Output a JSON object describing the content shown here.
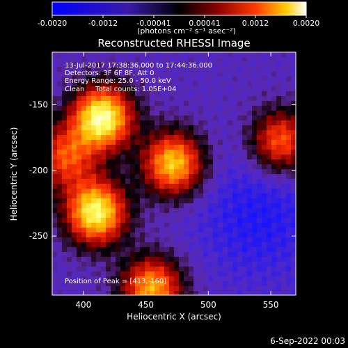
{
  "colorbar": {
    "ticks": [
      "-0.0020",
      "-0.0012",
      "-0.00041",
      "0.00041",
      "0.0012",
      "0.0020"
    ],
    "units": "(photons cm⁻² s⁻¹ asec⁻²)"
  },
  "chart_data": {
    "type": "heatmap",
    "title": "Reconstructed RHESSI Image",
    "xlabel": "Heliocentric X (arcsec)",
    "ylabel": "Heliocentric Y (arcsec)",
    "xlim": [
      375,
      570
    ],
    "ylim": [
      -295,
      -110
    ],
    "xticks": [
      "400",
      "450",
      "500",
      "550"
    ],
    "yticks": [
      "-150",
      "-200",
      "-250"
    ],
    "sources": [
      {
        "x": 415,
        "y": -160,
        "peak": 1.0
      },
      {
        "x": 410,
        "y": -232,
        "peak": 0.95
      },
      {
        "x": 472,
        "y": -195,
        "peak": 0.82
      },
      {
        "x": 558,
        "y": -178,
        "peak": 0.62
      },
      {
        "x": 455,
        "y": -290,
        "peak": 0.75
      },
      {
        "x": 385,
        "y": -190,
        "peak": 0.55
      }
    ],
    "annotations": [
      "13-Jul-2017 17:38:36.000 to 17:44:36.000",
      "Detectors: 3F 6F 8F, Att 0",
      "Energy Range: 25.0 - 50.0 keV",
      "Clean     Total counts: 1.05E+04",
      "Position of Peak = [413,-160]"
    ]
  },
  "footer": {
    "timestamp": "6-Sep-2022 00:03"
  }
}
